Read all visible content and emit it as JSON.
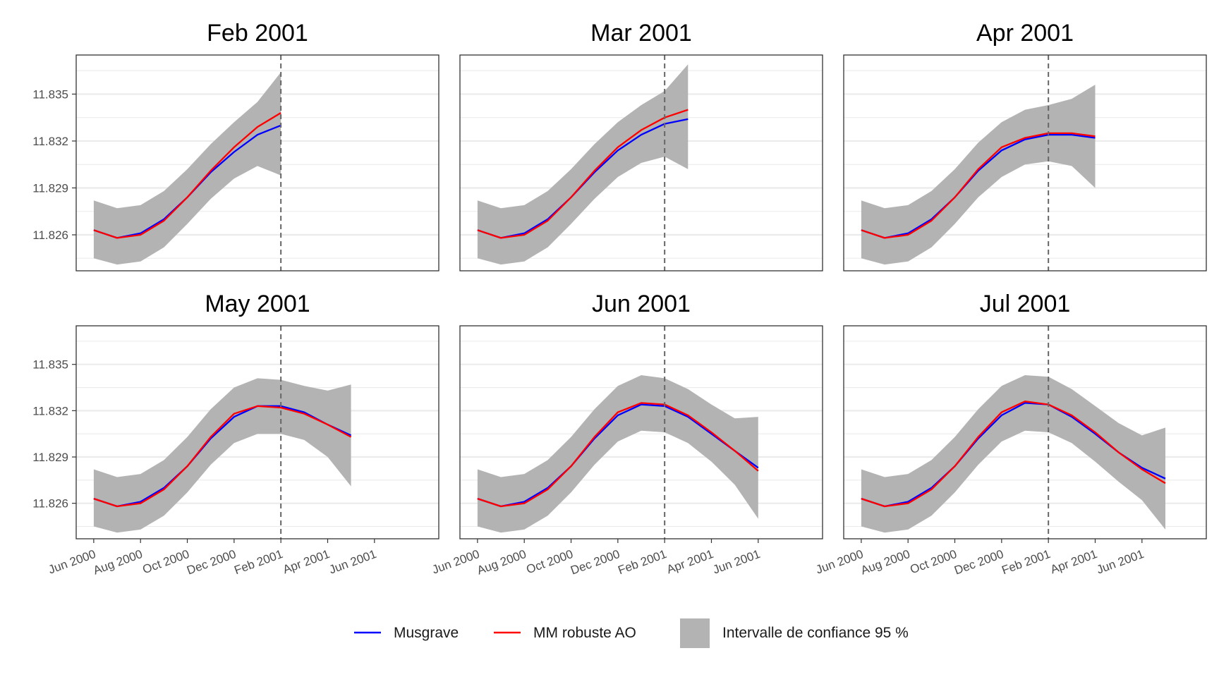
{
  "figure": {
    "legend": {
      "musgrave_label": "Musgrave",
      "robust_label": "MM robuste AO",
      "ci_label": "Intervalle de confiance 95 %"
    },
    "colors": {
      "musgrave": "#0000ff",
      "robust": "#ff0000",
      "ci_band": "#b3b3b3",
      "grid": "#ebebeb",
      "frame": "#333333",
      "vline": "#666666"
    }
  },
  "chart_data": [
    {
      "type": "line",
      "title": "Feb 2001",
      "x": [
        "2000-06",
        "2000-07",
        "2000-08",
        "2000-09",
        "2000-10",
        "2000-11",
        "2000-12",
        "2001-01",
        "2001-02"
      ],
      "series": [
        {
          "name": "Musgrave",
          "values": [
            11.8263,
            11.8258,
            11.8261,
            11.827,
            11.8284,
            11.83,
            11.8313,
            11.8324,
            11.833
          ]
        },
        {
          "name": "MM robuste AO",
          "values": [
            11.8263,
            11.8258,
            11.826,
            11.8269,
            11.8284,
            11.8301,
            11.8316,
            11.8329,
            11.8338
          ]
        }
      ],
      "ci": {
        "lower": [
          11.8245,
          11.8241,
          11.8243,
          11.8252,
          11.8267,
          11.8283,
          11.8296,
          11.8304,
          11.8298
        ],
        "upper": [
          11.8282,
          11.8277,
          11.8279,
          11.8288,
          11.8302,
          11.8318,
          11.8332,
          11.8345,
          11.8364
        ]
      },
      "vline": "2001-02",
      "ylim": [
        11.8237,
        11.8375
      ],
      "yticks": [
        11.826,
        11.829,
        11.832,
        11.835
      ],
      "ytick_labels": [
        "11.826",
        "11.829",
        "11.832",
        "11.835"
      ],
      "grid": true
    },
    {
      "type": "line",
      "title": "Mar 2001",
      "x": [
        "2000-06",
        "2000-07",
        "2000-08",
        "2000-09",
        "2000-10",
        "2000-11",
        "2000-12",
        "2001-01",
        "2001-02",
        "2001-03"
      ],
      "series": [
        {
          "name": "Musgrave",
          "values": [
            11.8263,
            11.8258,
            11.8261,
            11.827,
            11.8284,
            11.83,
            11.8314,
            11.8324,
            11.8331,
            11.8334
          ]
        },
        {
          "name": "MM robuste AO",
          "values": [
            11.8263,
            11.8258,
            11.826,
            11.8269,
            11.8284,
            11.8301,
            11.8316,
            11.8327,
            11.8335,
            11.834
          ]
        }
      ],
      "ci": {
        "lower": [
          11.8245,
          11.8241,
          11.8243,
          11.8252,
          11.8267,
          11.8283,
          11.8297,
          11.8306,
          11.831,
          11.8302
        ],
        "upper": [
          11.8282,
          11.8277,
          11.8279,
          11.8288,
          11.8302,
          11.8318,
          11.8332,
          11.8343,
          11.8352,
          11.8369
        ]
      },
      "vline": "2001-02",
      "ylim": [
        11.8237,
        11.8375
      ],
      "yticks": [
        11.826,
        11.829,
        11.832,
        11.835
      ],
      "grid": true
    },
    {
      "type": "line",
      "title": "Apr 2001",
      "x": [
        "2000-06",
        "2000-07",
        "2000-08",
        "2000-09",
        "2000-10",
        "2000-11",
        "2000-12",
        "2001-01",
        "2001-02",
        "2001-03",
        "2001-04"
      ],
      "series": [
        {
          "name": "Musgrave",
          "values": [
            11.8263,
            11.8258,
            11.8261,
            11.827,
            11.8284,
            11.8301,
            11.8314,
            11.8321,
            11.8324,
            11.8324,
            11.8322
          ]
        },
        {
          "name": "MM robuste AO",
          "values": [
            11.8263,
            11.8258,
            11.826,
            11.8269,
            11.8284,
            11.8302,
            11.8316,
            11.8322,
            11.8325,
            11.8325,
            11.8323
          ]
        }
      ],
      "ci": {
        "lower": [
          11.8245,
          11.8241,
          11.8243,
          11.8252,
          11.8267,
          11.8284,
          11.8297,
          11.8305,
          11.8307,
          11.8304,
          11.829
        ],
        "upper": [
          11.8282,
          11.8277,
          11.8279,
          11.8288,
          11.8302,
          11.8319,
          11.8332,
          11.834,
          11.8343,
          11.8347,
          11.8356
        ]
      },
      "vline": "2001-02",
      "ylim": [
        11.8237,
        11.8375
      ],
      "yticks": [
        11.826,
        11.829,
        11.832,
        11.835
      ],
      "grid": true
    },
    {
      "type": "line",
      "title": "May 2001",
      "x": [
        "2000-06",
        "2000-07",
        "2000-08",
        "2000-09",
        "2000-10",
        "2000-11",
        "2000-12",
        "2001-01",
        "2001-02",
        "2001-03",
        "2001-04",
        "2001-05"
      ],
      "series": [
        {
          "name": "Musgrave",
          "values": [
            11.8263,
            11.8258,
            11.8261,
            11.827,
            11.8284,
            11.8302,
            11.8316,
            11.8323,
            11.8323,
            11.8319,
            11.8311,
            11.8304
          ]
        },
        {
          "name": "MM robuste AO",
          "values": [
            11.8263,
            11.8258,
            11.826,
            11.8269,
            11.8284,
            11.8303,
            11.8318,
            11.8323,
            11.8322,
            11.8318,
            11.8311,
            11.8303
          ]
        }
      ],
      "ci": {
        "lower": [
          11.8245,
          11.8241,
          11.8243,
          11.8252,
          11.8267,
          11.8285,
          11.8299,
          11.8305,
          11.8305,
          11.8301,
          11.829,
          11.8271
        ],
        "upper": [
          11.8282,
          11.8277,
          11.8279,
          11.8288,
          11.8303,
          11.8321,
          11.8335,
          11.8341,
          11.834,
          11.8336,
          11.8333,
          11.8337
        ]
      },
      "vline": "2001-02",
      "ylim": [
        11.8237,
        11.8375
      ],
      "yticks": [
        11.826,
        11.829,
        11.832,
        11.835
      ],
      "grid": true
    },
    {
      "type": "line",
      "title": "Jun 2001",
      "x": [
        "2000-06",
        "2000-07",
        "2000-08",
        "2000-09",
        "2000-10",
        "2000-11",
        "2000-12",
        "2001-01",
        "2001-02",
        "2001-03",
        "2001-04",
        "2001-05",
        "2001-06"
      ],
      "series": [
        {
          "name": "Musgrave",
          "values": [
            11.8263,
            11.8258,
            11.8261,
            11.827,
            11.8284,
            11.8302,
            11.8317,
            11.8324,
            11.8323,
            11.8316,
            11.8305,
            11.8294,
            11.8283
          ]
        },
        {
          "name": "MM robuste AO",
          "values": [
            11.8263,
            11.8258,
            11.826,
            11.8269,
            11.8284,
            11.8303,
            11.8319,
            11.8325,
            11.8324,
            11.8317,
            11.8306,
            11.8294,
            11.8281
          ]
        }
      ],
      "ci": {
        "lower": [
          11.8245,
          11.8241,
          11.8243,
          11.8252,
          11.8267,
          11.8285,
          11.83,
          11.8307,
          11.8306,
          11.8299,
          11.8287,
          11.8272,
          11.825
        ],
        "upper": [
          11.8282,
          11.8277,
          11.8279,
          11.8288,
          11.8303,
          11.8321,
          11.8336,
          11.8343,
          11.8341,
          11.8334,
          11.8324,
          11.8315,
          11.8316
        ]
      },
      "vline": "2001-02",
      "ylim": [
        11.8237,
        11.8375
      ],
      "yticks": [
        11.826,
        11.829,
        11.832,
        11.835
      ],
      "grid": true
    },
    {
      "type": "line",
      "title": "Jul 2001",
      "x": [
        "2000-06",
        "2000-07",
        "2000-08",
        "2000-09",
        "2000-10",
        "2000-11",
        "2000-12",
        "2001-01",
        "2001-02",
        "2001-03",
        "2001-04",
        "2001-05",
        "2001-06",
        "2001-07"
      ],
      "series": [
        {
          "name": "Musgrave",
          "values": [
            11.8263,
            11.8258,
            11.8261,
            11.827,
            11.8284,
            11.8302,
            11.8317,
            11.8325,
            11.8324,
            11.8316,
            11.8305,
            11.8293,
            11.8283,
            11.8276
          ]
        },
        {
          "name": "MM robuste AO",
          "values": [
            11.8263,
            11.8258,
            11.826,
            11.8269,
            11.8284,
            11.8303,
            11.8319,
            11.8326,
            11.8324,
            11.8317,
            11.8306,
            11.8293,
            11.8282,
            11.8273
          ]
        }
      ],
      "ci": {
        "lower": [
          11.8245,
          11.8241,
          11.8243,
          11.8252,
          11.8267,
          11.8285,
          11.83,
          11.8307,
          11.8306,
          11.8299,
          11.8287,
          11.8274,
          11.8262,
          11.8243
        ],
        "upper": [
          11.8282,
          11.8277,
          11.8279,
          11.8288,
          11.8303,
          11.8321,
          11.8336,
          11.8343,
          11.8342,
          11.8334,
          11.8323,
          11.8312,
          11.8304,
          11.8309
        ]
      },
      "vline": "2001-02",
      "ylim": [
        11.8237,
        11.8375
      ],
      "yticks": [
        11.826,
        11.829,
        11.832,
        11.835
      ],
      "grid": true
    }
  ],
  "x_axis": {
    "ticks": [
      "2000-06",
      "2000-08",
      "2000-10",
      "2000-12",
      "2001-02",
      "2001-04",
      "2001-06"
    ],
    "tick_labels": [
      "Jun 2000",
      "Aug 2000",
      "Oct 2000",
      "Dec 2000",
      "Feb 2001",
      "Apr 2001",
      "Jun 2001"
    ],
    "range": [
      "2000-05",
      "2001-08"
    ]
  }
}
